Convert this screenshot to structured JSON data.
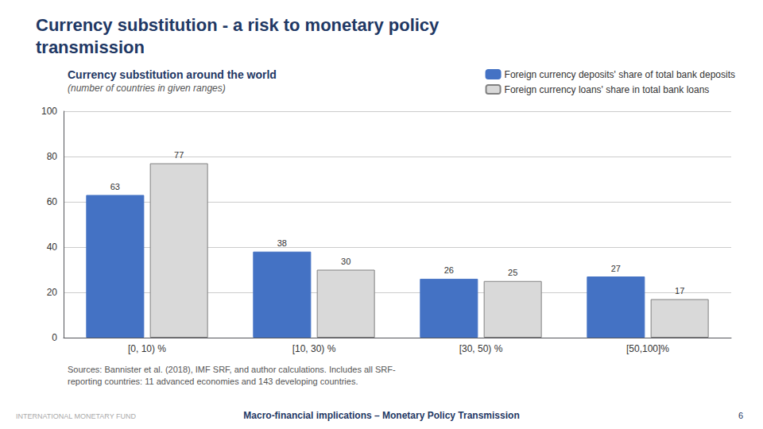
{
  "chart_data": {
    "type": "bar",
    "slide_title": "Currency substitution - a risk to monetary policy\ntransmission",
    "title": "Currency substitution around the world",
    "subtitle": "(number of countries in given ranges)",
    "categories": [
      "[0, 10) %",
      "[10, 30) %",
      "[30, 50) %",
      "[50,100]%"
    ],
    "series": [
      {
        "name": "Foreign currency deposits' share of total bank deposits",
        "color": "#4472C4",
        "values": [
          63,
          38,
          26,
          27
        ]
      },
      {
        "name": "Foreign currency loans' share in total bank loans",
        "color": "#D9D9D9",
        "values": [
          77,
          30,
          25,
          17
        ]
      }
    ],
    "ylim": [
      0,
      100
    ],
    "yticks": [
      0,
      20,
      40,
      60,
      80,
      100
    ],
    "grid": true,
    "legend": "upper right",
    "data_labels": true,
    "source": "Sources: Bannister et al. (2018), IMF SRF, and author calculations. Includes all SRF-\nreporting countries: 11 advanced economies and 143 developing countries.",
    "footer_center": "Macro-financial implications – Monetary Policy Transmission",
    "footer_left": "INTERNATIONAL MONETARY FUND",
    "footer_right": "6"
  }
}
